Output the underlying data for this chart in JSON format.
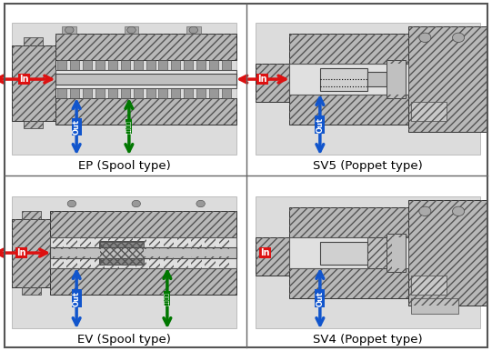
{
  "background_color": "#ffffff",
  "panel_bg": "#dcdcdc",
  "outer_bg": "#f0f0f0",
  "labels": [
    "EP (Spool type)",
    "SV5 (Poppet type)",
    "EV (Spool type)",
    "SV4 (Poppet type)"
  ],
  "red": "#dd1111",
  "blue": "#1155cc",
  "green": "#007700",
  "label_fontsize": 9.5,
  "fig_width": 5.41,
  "fig_height": 3.86
}
